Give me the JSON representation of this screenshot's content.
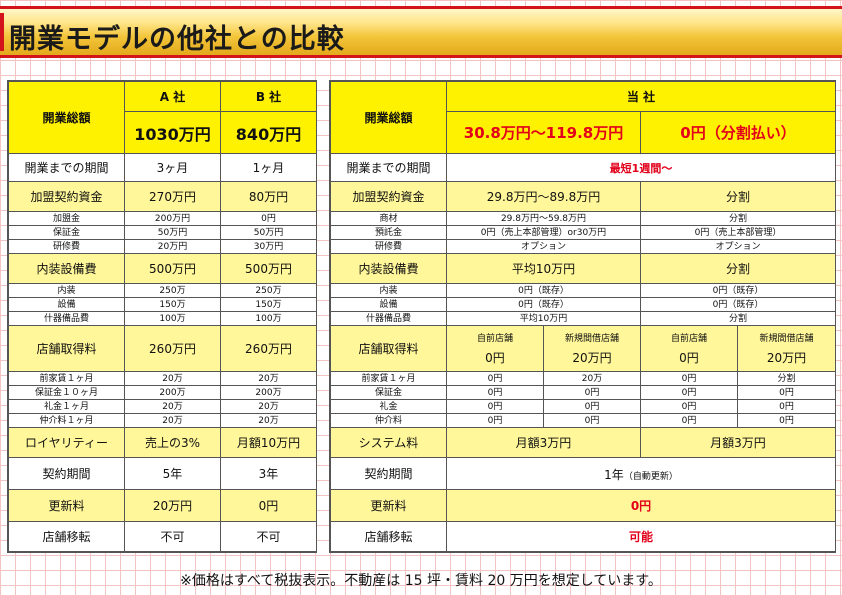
{
  "title": "開業モデルの他社との比較",
  "left": {
    "header": {
      "label": "開業総額",
      "col_a": "A 社",
      "col_b": "B 社",
      "total_a": "1030万円",
      "total_b": "840万円"
    },
    "period": {
      "label": "開業までの期間",
      "a": "3ヶ月",
      "b": "1ヶ月"
    },
    "franchise": {
      "label": "加盟契約資金",
      "a": "270万円",
      "b": "80万円",
      "rows": [
        {
          "label": "加盟金",
          "a": "200万円",
          "b": "0円"
        },
        {
          "label": "保証金",
          "a": "50万円",
          "b": "50万円"
        },
        {
          "label": "研修費",
          "a": "20万円",
          "b": "30万円"
        }
      ]
    },
    "interior": {
      "label": "内装設備費",
      "a": "500万円",
      "b": "500万円",
      "rows": [
        {
          "label": "内装",
          "a": "250万",
          "b": "250万"
        },
        {
          "label": "設備",
          "a": "150万",
          "b": "150万"
        },
        {
          "label": "什器備品費",
          "a": "100万",
          "b": "100万"
        }
      ]
    },
    "store": {
      "label": "店舗取得料",
      "a": "260万円",
      "b": "260万円",
      "rows": [
        {
          "label": "前家賃１ヶ月",
          "a": "20万",
          "b": "20万"
        },
        {
          "label": "保証金１０ヶ月",
          "a": "200万",
          "b": "200万"
        },
        {
          "label": "礼金１ヶ月",
          "a": "20万",
          "b": "20万"
        },
        {
          "label": "仲介料１ヶ月",
          "a": "20万",
          "b": "20万"
        }
      ]
    },
    "royalty": {
      "label": "ロイヤリティー",
      "a": "売上の3%",
      "b": "月額10万円"
    },
    "contract": {
      "label": "契約期間",
      "a": "5年",
      "b": "3年"
    },
    "renewal": {
      "label": "更新料",
      "a": "20万円",
      "b": "0円"
    },
    "relocation": {
      "label": "店舗移転",
      "a": "不可",
      "b": "不可"
    }
  },
  "right": {
    "header": {
      "label": "開業総額",
      "company": "当 社",
      "total_1": "30.8万円～119.8万円",
      "total_2": "0円（分割払い）"
    },
    "period": {
      "label": "開業までの期間",
      "value": "最短1週間～"
    },
    "franchise": {
      "label": "加盟契約資金",
      "v1": "29.8万円～89.8万円",
      "v2": "分割",
      "rows": [
        {
          "label": "商材",
          "v1": "29.8万円～59.8万円",
          "v2": "分割"
        },
        {
          "label": "預託金",
          "v1": "0円（売上本部管理）or30万円",
          "v2": "0円（売上本部管理）"
        },
        {
          "label": "研修費",
          "v1": "オプション",
          "v2": "オプション"
        }
      ]
    },
    "interior": {
      "label": "内装設備費",
      "v1": "平均10万円",
      "v2": "分割",
      "rows": [
        {
          "label": "内装",
          "v1": "0円（既存）",
          "v2": "0円（既存）"
        },
        {
          "label": "設備",
          "v1": "0円（既存）",
          "v2": "0円（既存）"
        },
        {
          "label": "什器備品費",
          "v1": "平均10万円",
          "v2": "分割"
        }
      ]
    },
    "store": {
      "label": "店舗取得料",
      "sub": [
        {
          "head": "自前店舗",
          "value": "0円"
        },
        {
          "head": "新規間借店舗",
          "value": "20万円"
        },
        {
          "head": "自前店舗",
          "value": "0円"
        },
        {
          "head": "新規間借店舗",
          "value": "20万円"
        }
      ],
      "rows": [
        {
          "label": "前家賃１ヶ月",
          "c": [
            "0円",
            "20万",
            "0円",
            "分割"
          ]
        },
        {
          "label": "保証金",
          "c": [
            "0円",
            "0円",
            "0円",
            "0円"
          ]
        },
        {
          "label": "礼金",
          "c": [
            "0円",
            "0円",
            "0円",
            "0円"
          ]
        },
        {
          "label": "仲介料",
          "c": [
            "0円",
            "0円",
            "0円",
            "0円"
          ]
        }
      ]
    },
    "system": {
      "label": "システム料",
      "v1": "月額3万円",
      "v2": "月額3万円"
    },
    "contract": {
      "label": "契約期間",
      "value": "1年",
      "note": "（自動更新）"
    },
    "renewal": {
      "label": "更新料",
      "value": "0円"
    },
    "relocation": {
      "label": "店舗移転",
      "value": "可能"
    }
  },
  "footnote": "※価格はすべて税抜表示。不動産は 15 坪・賃料 20 万円を想定しています。"
}
